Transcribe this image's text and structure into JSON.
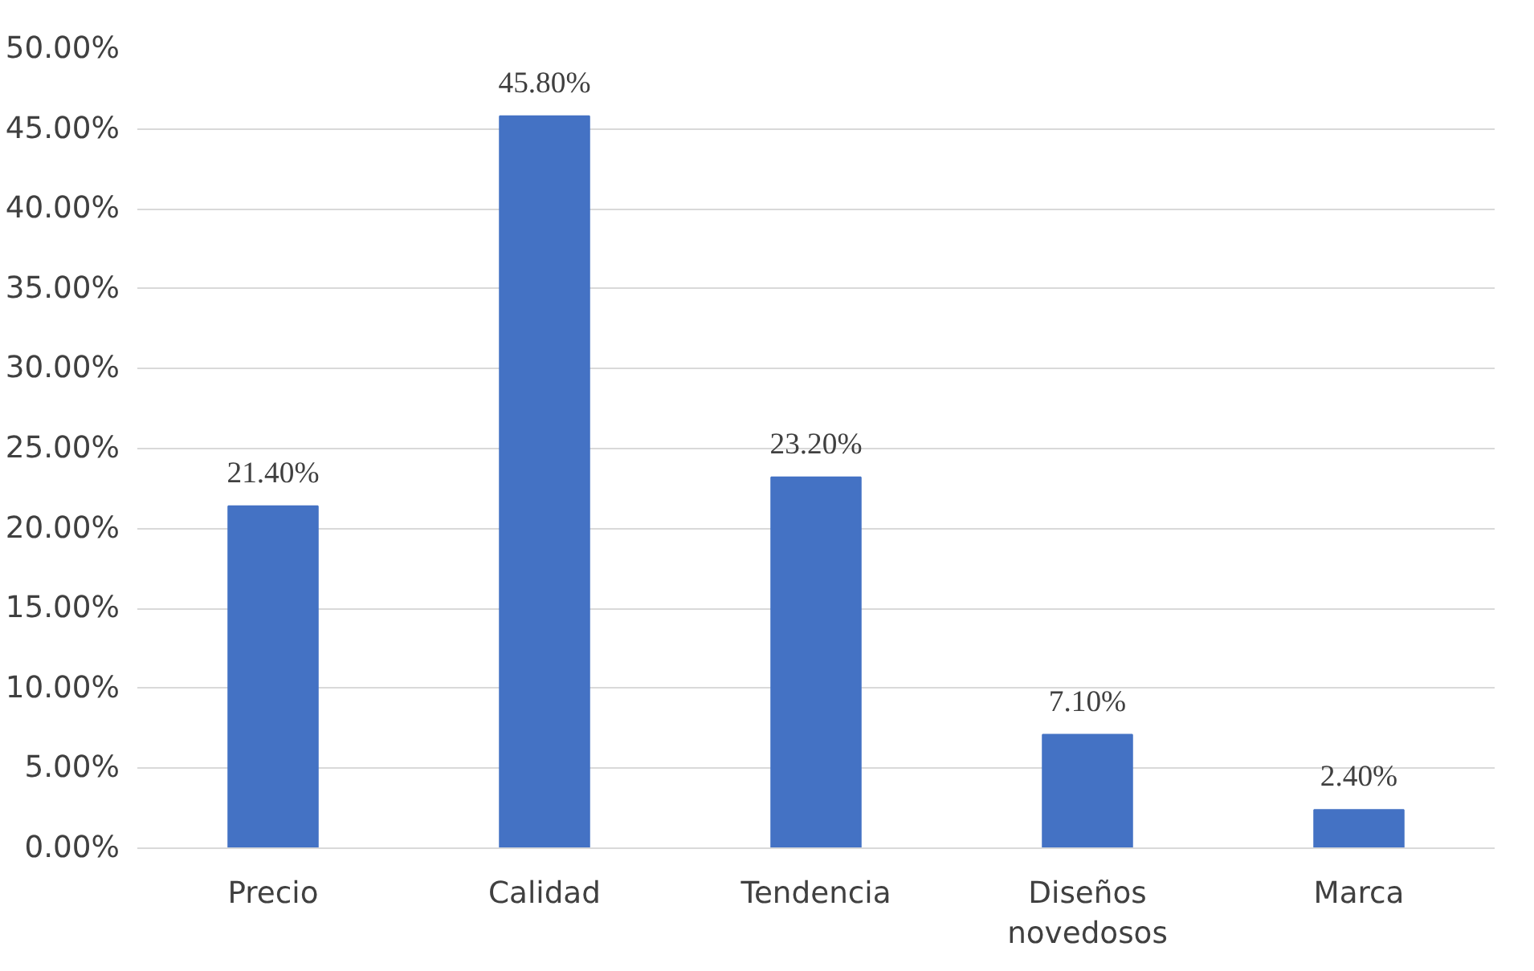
{
  "chart_data": {
    "type": "bar",
    "categories": [
      "Precio",
      "Calidad",
      "Tendencia",
      "Diseños\nnovedosos",
      "Marca"
    ],
    "values": [
      21.4,
      45.8,
      23.2,
      7.1,
      2.4
    ],
    "value_labels": [
      "21.40%",
      "45.80%",
      "23.20%",
      "7.10%",
      "2.40%"
    ],
    "color": "#4472c4",
    "ylim": [
      0,
      50
    ],
    "yticks": [
      {
        "value": 0,
        "label": "0.00%"
      },
      {
        "value": 5,
        "label": "5.00%"
      },
      {
        "value": 10,
        "label": "10.00%"
      },
      {
        "value": 15,
        "label": "15.00%"
      },
      {
        "value": 20,
        "label": "20.00%"
      },
      {
        "value": 25,
        "label": "25.00%"
      },
      {
        "value": 30,
        "label": "30.00%"
      },
      {
        "value": 35,
        "label": "35.00%"
      },
      {
        "value": 40,
        "label": "40.00%"
      },
      {
        "value": 45,
        "label": "45.00%"
      },
      {
        "value": 50,
        "label": "50.00%"
      }
    ],
    "grid": "y"
  }
}
